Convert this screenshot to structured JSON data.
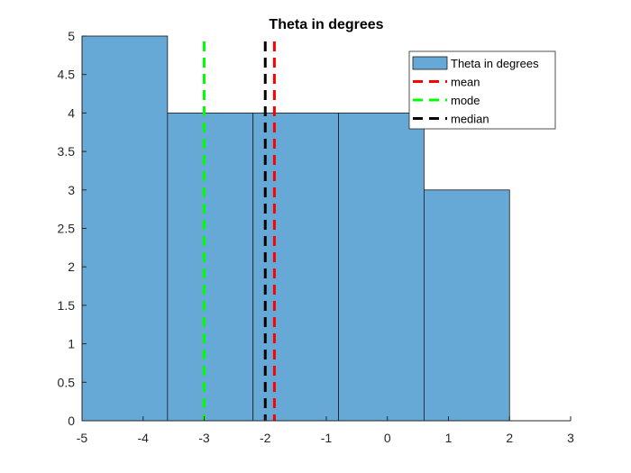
{
  "chart_data": {
    "type": "bar",
    "title": "Theta in degrees",
    "xlabel": "",
    "ylabel": "",
    "xlim": [
      -5,
      3
    ],
    "ylim": [
      0,
      5
    ],
    "xticks": [
      "-5",
      "-4",
      "-3",
      "-2",
      "-1",
      "0",
      "1",
      "2",
      "3"
    ],
    "yticks": [
      "0",
      "0.5",
      "1",
      "1.5",
      "2",
      "2.5",
      "3",
      "3.5",
      "4",
      "4.5",
      "5"
    ],
    "histogram": {
      "name": "Theta in degrees",
      "bin_edges": [
        -5,
        -3.6,
        -2.2,
        -0.8,
        0.6,
        2.0
      ],
      "counts": [
        5,
        4,
        4,
        4,
        3
      ],
      "color": "#67a9d6"
    },
    "vlines": [
      {
        "name": "mean",
        "x": -1.85,
        "color": "#ff0000"
      },
      {
        "name": "mode",
        "x": -3.0,
        "color": "#00ff00"
      },
      {
        "name": "median",
        "x": -2.0,
        "color": "#000000"
      }
    ],
    "legend": {
      "position": "top-right",
      "entries": [
        "Theta in degrees",
        "mean",
        "mode",
        "median"
      ]
    },
    "grid": false
  }
}
